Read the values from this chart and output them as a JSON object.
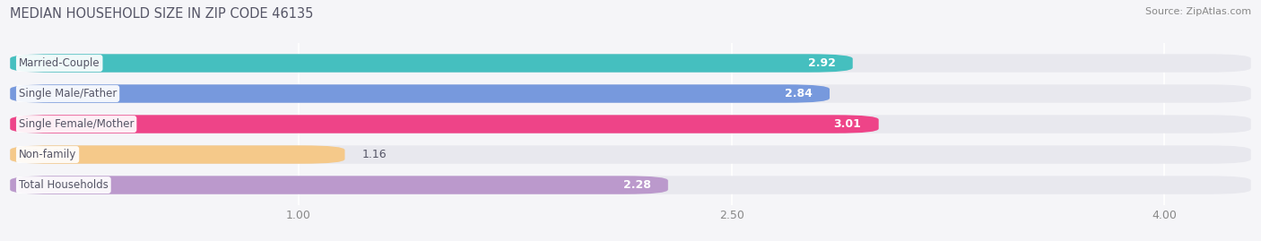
{
  "title": "MEDIAN HOUSEHOLD SIZE IN ZIP CODE 46135",
  "source": "Source: ZipAtlas.com",
  "categories": [
    "Married-Couple",
    "Single Male/Father",
    "Single Female/Mother",
    "Non-family",
    "Total Households"
  ],
  "values": [
    2.92,
    2.84,
    3.01,
    1.16,
    2.28
  ],
  "bar_colors": [
    "#45bfbf",
    "#7799dd",
    "#ee4488",
    "#f5c98a",
    "#bb99cc"
  ],
  "bar_bg_color": "#e8e8ee",
  "xmin": 0.0,
  "xmax": 4.3,
  "xlim_left": 0.0,
  "xlim_right": 4.3,
  "xticks": [
    1.0,
    2.5,
    4.0
  ],
  "title_fontsize": 10.5,
  "source_fontsize": 8,
  "label_fontsize": 8.5,
  "value_fontsize": 9,
  "background_color": "#f5f5f8",
  "label_text_color": "#555566",
  "value_text_color_inside": "#ffffff",
  "value_text_color_outside": "#555566"
}
